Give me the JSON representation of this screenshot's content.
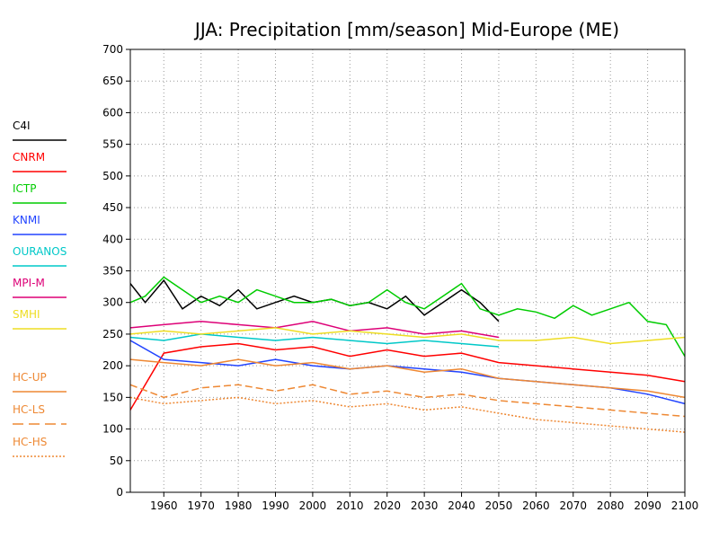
{
  "chart_data": {
    "type": "line",
    "title": "JJA: Precipitation [mm/season] Mid-Europe (ME)",
    "xlabel": "",
    "ylabel": "",
    "xlim": [
      1951,
      2100
    ],
    "ylim": [
      0,
      700
    ],
    "xticks": [
      1960,
      1970,
      1980,
      1990,
      2000,
      2010,
      2020,
      2030,
      2040,
      2050,
      2060,
      2070,
      2080,
      2090,
      2100
    ],
    "yticks": [
      0,
      50,
      100,
      150,
      200,
      250,
      300,
      350,
      400,
      450,
      500,
      550,
      600,
      650,
      700
    ],
    "grid": true,
    "legend_position": "left",
    "series": [
      {
        "name": "C4I",
        "color": "#000000",
        "dash": "solid",
        "years": [
          1951,
          1955,
          1960,
          1965,
          1970,
          1975,
          1980,
          1985,
          1990,
          1995,
          2000,
          2005,
          2010,
          2015,
          2020,
          2025,
          2030,
          2035,
          2040,
          2045,
          2050
        ],
        "values": [
          330,
          300,
          335,
          290,
          310,
          295,
          320,
          290,
          300,
          310,
          300,
          305,
          295,
          300,
          290,
          310,
          280,
          300,
          320,
          300,
          270
        ]
      },
      {
        "name": "CNRM",
        "color": "#ff0000",
        "dash": "solid",
        "years": [
          1951,
          1960,
          1970,
          1980,
          1990,
          2000,
          2010,
          2020,
          2030,
          2040,
          2050,
          2060,
          2070,
          2080,
          2090,
          2100
        ],
        "values": [
          130,
          220,
          230,
          235,
          225,
          230,
          215,
          225,
          215,
          220,
          205,
          200,
          195,
          190,
          185,
          175
        ]
      },
      {
        "name": "ICTP",
        "color": "#00cc00",
        "dash": "solid",
        "years": [
          1951,
          1955,
          1960,
          1965,
          1970,
          1975,
          1980,
          1985,
          1990,
          1995,
          2000,
          2005,
          2010,
          2015,
          2020,
          2025,
          2030,
          2035,
          2040,
          2045,
          2050,
          2055,
          2060,
          2065,
          2070,
          2075,
          2080,
          2085,
          2090,
          2095,
          2100
        ],
        "values": [
          300,
          310,
          340,
          320,
          300,
          310,
          300,
          320,
          310,
          300,
          300,
          305,
          295,
          300,
          320,
          300,
          290,
          310,
          330,
          290,
          280,
          290,
          285,
          275,
          295,
          280,
          290,
          300,
          270,
          265,
          215
        ]
      },
      {
        "name": "KNMI",
        "color": "#2244ff",
        "dash": "solid",
        "years": [
          1951,
          1960,
          1970,
          1980,
          1990,
          2000,
          2010,
          2020,
          2030,
          2040,
          2050,
          2060,
          2070,
          2080,
          2090,
          2100
        ],
        "values": [
          240,
          210,
          205,
          200,
          210,
          200,
          195,
          200,
          195,
          190,
          180,
          175,
          170,
          165,
          155,
          140
        ]
      },
      {
        "name": "OURANOS",
        "color": "#00c8c8",
        "dash": "solid",
        "years": [
          1951,
          1960,
          1970,
          1980,
          1990,
          2000,
          2010,
          2020,
          2030,
          2040,
          2050
        ],
        "values": [
          245,
          240,
          250,
          245,
          240,
          245,
          240,
          235,
          240,
          235,
          230
        ]
      },
      {
        "name": "MPI-M",
        "color": "#dd0077",
        "dash": "solid",
        "years": [
          1951,
          1960,
          1970,
          1980,
          1990,
          2000,
          2010,
          2020,
          2030,
          2040,
          2050
        ],
        "values": [
          260,
          265,
          270,
          265,
          260,
          270,
          255,
          260,
          250,
          255,
          245
        ]
      },
      {
        "name": "SMHI",
        "color": "#eedd22",
        "dash": "solid",
        "years": [
          1951,
          1960,
          1970,
          1980,
          1990,
          2000,
          2010,
          2020,
          2030,
          2040,
          2050,
          2060,
          2070,
          2080,
          2090,
          2100
        ],
        "values": [
          250,
          255,
          250,
          255,
          260,
          250,
          255,
          250,
          245,
          250,
          240,
          240,
          245,
          235,
          240,
          245
        ]
      },
      {
        "name": "HC-UP",
        "color": "#ee8833",
        "dash": "solid",
        "years": [
          1951,
          1960,
          1970,
          1980,
          1990,
          2000,
          2010,
          2020,
          2030,
          2040,
          2050,
          2060,
          2070,
          2080,
          2090,
          2100
        ],
        "values": [
          210,
          205,
          200,
          210,
          200,
          205,
          195,
          200,
          190,
          195,
          180,
          175,
          170,
          165,
          160,
          150
        ]
      },
      {
        "name": "HC-LS",
        "color": "#ee8833",
        "dash": "dashed",
        "years": [
          1951,
          1960,
          1970,
          1980,
          1990,
          2000,
          2010,
          2020,
          2030,
          2040,
          2050,
          2060,
          2070,
          2080,
          2090,
          2100
        ],
        "values": [
          170,
          150,
          165,
          170,
          160,
          170,
          155,
          160,
          150,
          155,
          145,
          140,
          135,
          130,
          125,
          120
        ]
      },
      {
        "name": "HC-HS",
        "color": "#ee8833",
        "dash": "dotted",
        "years": [
          1951,
          1960,
          1970,
          1980,
          1990,
          2000,
          2010,
          2020,
          2030,
          2040,
          2050,
          2060,
          2070,
          2080,
          2090,
          2100
        ],
        "values": [
          150,
          140,
          145,
          150,
          140,
          145,
          135,
          140,
          130,
          135,
          125,
          115,
          110,
          105,
          100,
          95
        ]
      }
    ]
  }
}
